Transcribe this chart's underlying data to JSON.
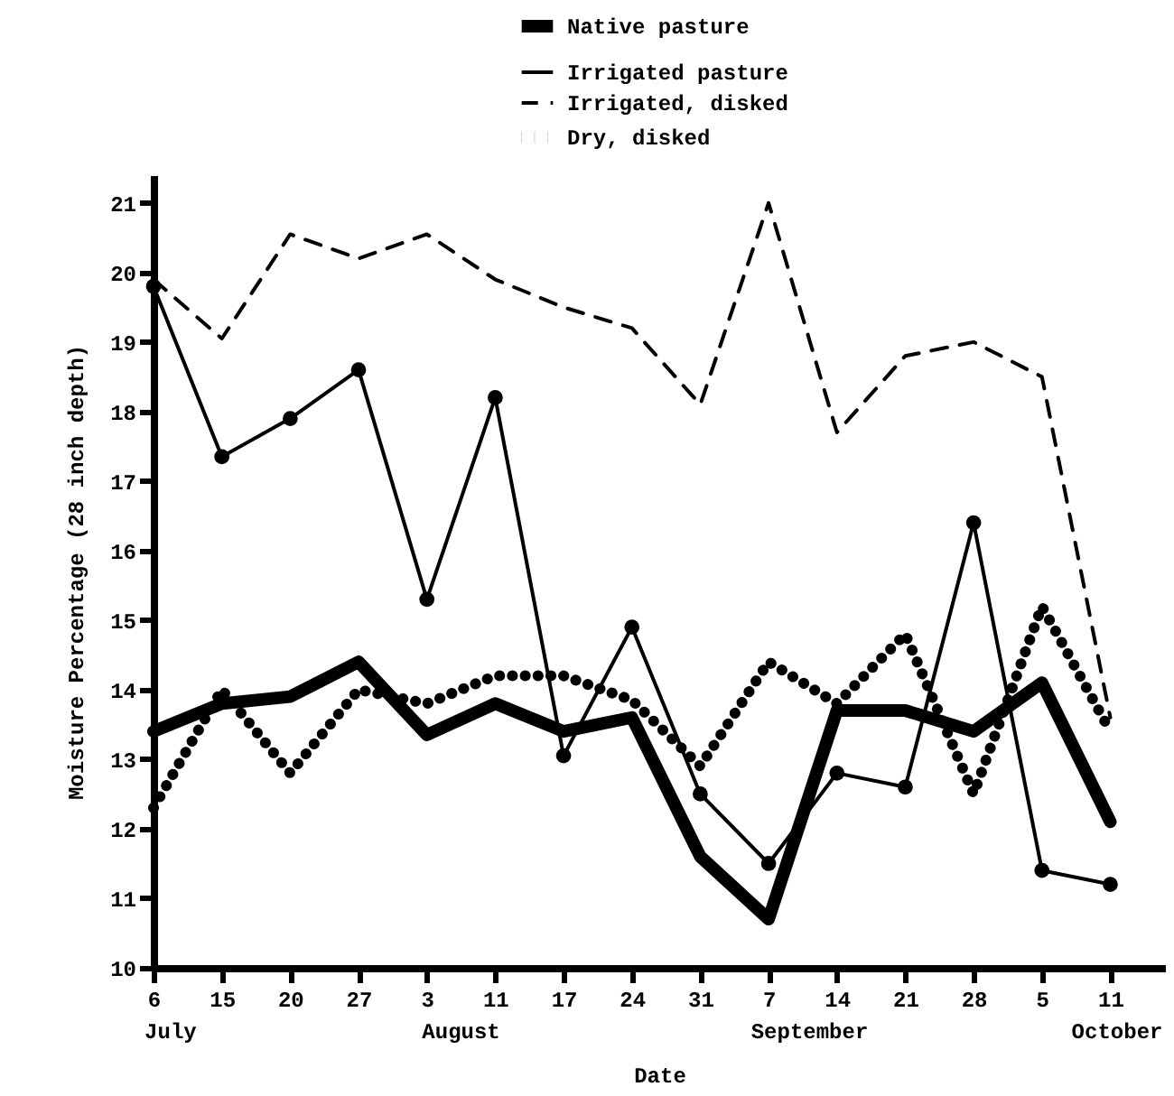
{
  "chart_data": {
    "type": "line",
    "xlabel": "Date",
    "ylabel": "Moisture Percentage (28 inch depth)",
    "categories": [
      "6",
      "15",
      "20",
      "27",
      "3",
      "11",
      "17",
      "24",
      "31",
      "7",
      "14",
      "21",
      "28",
      "5",
      "11"
    ],
    "annotations": [
      "July",
      "August",
      "September",
      "October"
    ],
    "ylim": [
      10,
      21.4
    ],
    "yticks": [
      10,
      11,
      12,
      13,
      14,
      15,
      16,
      17,
      18,
      19,
      20,
      21
    ],
    "grid": false,
    "legend": "top right",
    "series": [
      {
        "name": "Native pasture",
        "color": "#000000",
        "line_style": "solid",
        "marker": "none",
        "values": [
          13.4,
          13.8,
          13.9,
          14.4,
          13.35,
          13.8,
          13.4,
          13.6,
          11.6,
          10.7,
          13.7,
          13.7,
          13.4,
          14.1,
          12.1
        ]
      },
      {
        "name": "Irrigated pasture",
        "color": "#000000",
        "line_style": "solid",
        "marker": "circle",
        "values": [
          19.8,
          17.35,
          17.9,
          18.6,
          15.3,
          18.2,
          13.05,
          14.9,
          12.5,
          11.5,
          12.8,
          12.6,
          16.4,
          11.4,
          11.2
        ]
      },
      {
        "name": "Irrigated, disked",
        "color": "#000000",
        "line_style": "dashed",
        "marker": "none",
        "values": [
          19.9,
          19.05,
          20.55,
          20.2,
          20.55,
          19.9,
          19.5,
          19.2,
          18.1,
          21.0,
          17.7,
          18.8,
          19.0,
          18.5,
          13.6
        ]
      },
      {
        "name": "Dry, disked",
        "color": "#000000",
        "line_style": "dotted",
        "marker": "none",
        "values": [
          12.3,
          14.0,
          12.8,
          14.0,
          13.8,
          14.2,
          14.2,
          13.85,
          12.9,
          14.4,
          13.8,
          14.8,
          12.5,
          15.2,
          13.4
        ]
      }
    ]
  }
}
